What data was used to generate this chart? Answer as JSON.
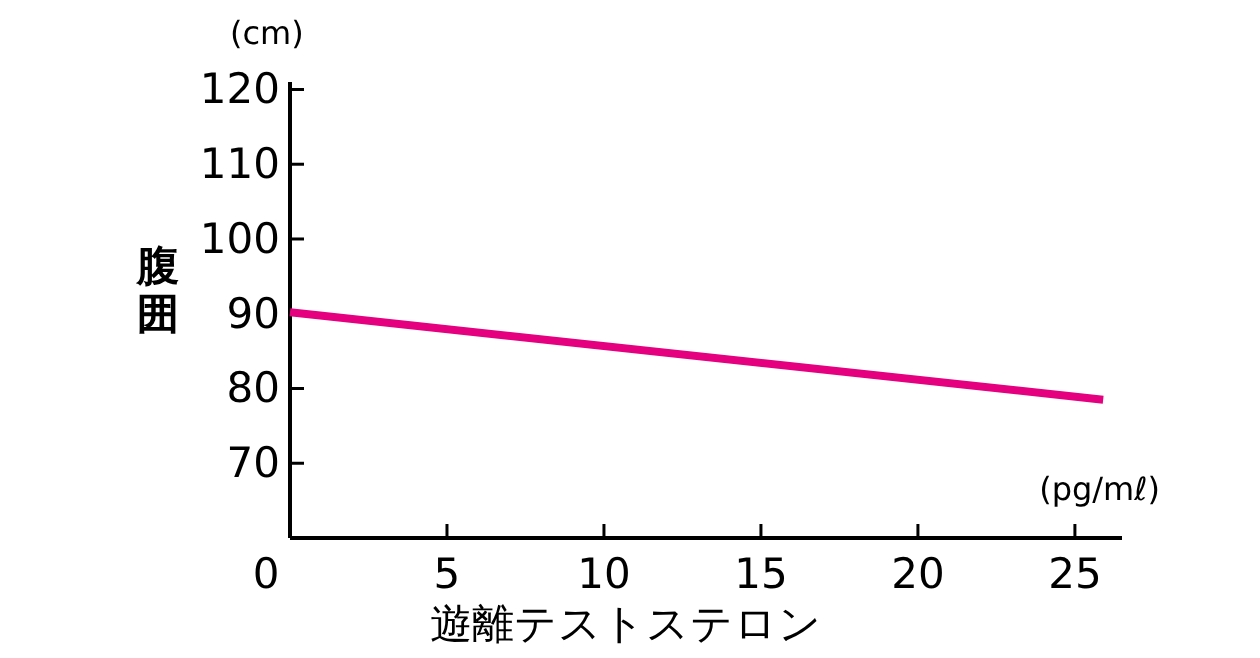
{
  "chart_data": {
    "type": "line",
    "xlabel": "遊離テストステロン",
    "ylabel": "腹囲",
    "annotations": [
      "(cm)",
      "(pg/mℓ)"
    ],
    "series": [
      {
        "color": "#e4007f",
        "x": [
          0,
          25.9
        ],
        "values": [
          90.2,
          78.5
        ]
      }
    ],
    "xlim": [
      0,
      26.5
    ],
    "ylim": [
      60,
      121
    ],
    "xticks": [
      0,
      5,
      10,
      15,
      20,
      25
    ],
    "yticks": [
      70,
      80,
      90,
      100,
      110,
      120
    ],
    "grid": false
  }
}
